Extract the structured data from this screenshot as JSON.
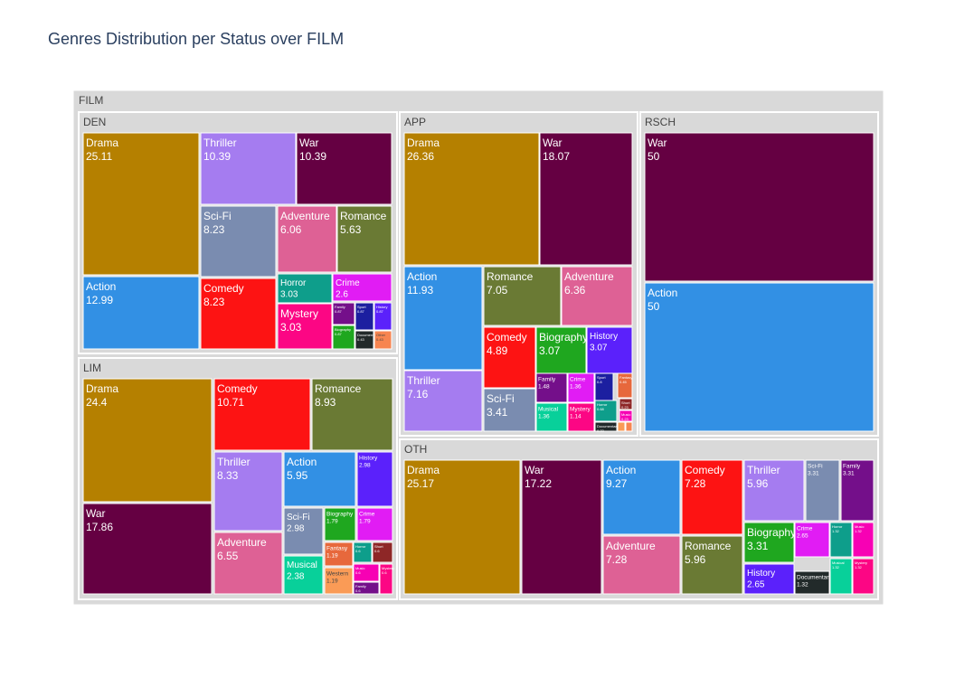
{
  "colors": {
    "Drama": "#b58000",
    "War": "#650042",
    "Thriller": "#a57cf0",
    "Sci-Fi": "#7a8cb0",
    "Adventure": "#de6195",
    "Romance": "#6a7a34",
    "Action": "#3290e4",
    "Comedy": "#fd1313",
    "Horror": "#0e9e8b",
    "Crime": "#e11cf4",
    "Mystery": "#fc0684",
    "Family": "#740f8a",
    "Sport": "#1c1fa0",
    "History": "#5b21fb",
    "Biography": "#1fa71f",
    "Musical": "#08d09a",
    "Fantasy": "#e7683c",
    "Western": "#fa9b56",
    "Short": "#8e2727",
    "Documentary": "#222a2a",
    "Music": "#f701b4",
    "Other": "#f78550",
    "parent": "#d9d9d9"
  },
  "chart_data": {
    "type": "treemap",
    "title": "Genres Distribution per Status over FILM",
    "root": "FILM",
    "groups": [
      {
        "name": "DEN",
        "children": [
          {
            "label": "Drama",
            "value": 25.11
          },
          {
            "label": "Thriller",
            "value": 10.39
          },
          {
            "label": "War",
            "value": 10.39
          },
          {
            "label": "Sci-Fi",
            "value": 8.23
          },
          {
            "label": "Adventure",
            "value": 6.06
          },
          {
            "label": "Romance",
            "value": 5.63
          },
          {
            "label": "Action",
            "value": 12.99
          },
          {
            "label": "Comedy",
            "value": 8.23
          },
          {
            "label": "Horror",
            "value": 3.03
          },
          {
            "label": "Crime",
            "value": 2.6
          },
          {
            "label": "Mystery",
            "value": 3.03
          },
          {
            "label": "Family",
            "value": 0.87
          },
          {
            "label": "Sport",
            "value": 0.87
          },
          {
            "label": "History",
            "value": 0.87
          },
          {
            "label": "Biography",
            "value": 0.87
          },
          {
            "label": "Documentary",
            "value": 0.43
          },
          {
            "label": "Other",
            "value": 0.43
          }
        ]
      },
      {
        "name": "APP",
        "children": [
          {
            "label": "Drama",
            "value": 26.36
          },
          {
            "label": "War",
            "value": 18.07
          },
          {
            "label": "Action",
            "value": 11.93
          },
          {
            "label": "Romance",
            "value": 7.05
          },
          {
            "label": "Adventure",
            "value": 6.36
          },
          {
            "label": "Thriller",
            "value": 7.16
          },
          {
            "label": "Comedy",
            "value": 4.89
          },
          {
            "label": "Biography",
            "value": 3.07
          },
          {
            "label": "History",
            "value": 3.07
          },
          {
            "label": "Sci-Fi",
            "value": 3.41
          },
          {
            "label": "Family",
            "value": 1.48
          },
          {
            "label": "Crime",
            "value": 1.36
          },
          {
            "label": "Sport",
            "value": 0.8
          },
          {
            "label": "Musical",
            "value": 1.36
          },
          {
            "label": "Mystery",
            "value": 1.14
          },
          {
            "label": "Horror",
            "value": 0.68
          },
          {
            "label": "Fantasy",
            "value": 0.45
          },
          {
            "label": "Short",
            "value": 0.23
          },
          {
            "label": "Music",
            "value": 0.23
          },
          {
            "label": "Documentary",
            "value": 0.23
          },
          {
            "label": "Western",
            "value": 0.11
          },
          {
            "label": "Other",
            "value": 0.11
          }
        ]
      },
      {
        "name": "RSCH",
        "children": [
          {
            "label": "War",
            "value": 50
          },
          {
            "label": "Action",
            "value": 50
          }
        ]
      },
      {
        "name": "LIM",
        "children": [
          {
            "label": "Drama",
            "value": 24.4
          },
          {
            "label": "War",
            "value": 17.86
          },
          {
            "label": "Comedy",
            "value": 10.71
          },
          {
            "label": "Romance",
            "value": 8.93
          },
          {
            "label": "Thriller",
            "value": 8.33
          },
          {
            "label": "Adventure",
            "value": 6.55
          },
          {
            "label": "Action",
            "value": 5.95
          },
          {
            "label": "History",
            "value": 2.98
          },
          {
            "label": "Sci-Fi",
            "value": 2.98
          },
          {
            "label": "Biography",
            "value": 1.79
          },
          {
            "label": "Crime",
            "value": 1.79
          },
          {
            "label": "Musical",
            "value": 2.38
          },
          {
            "label": "Fantasy",
            "value": 1.19
          },
          {
            "label": "Horror",
            "value": 0.6
          },
          {
            "label": "Short",
            "value": 0.6
          },
          {
            "label": "Western",
            "value": 1.19
          },
          {
            "label": "Music",
            "value": 0.6
          },
          {
            "label": "Family",
            "value": 0.6
          },
          {
            "label": "Mystery",
            "value": 0.6
          }
        ]
      },
      {
        "name": "OTH",
        "children": [
          {
            "label": "Drama",
            "value": 25.17
          },
          {
            "label": "War",
            "value": 17.22
          },
          {
            "label": "Action",
            "value": 9.27
          },
          {
            "label": "Comedy",
            "value": 7.28
          },
          {
            "label": "Adventure",
            "value": 7.28
          },
          {
            "label": "Romance",
            "value": 5.96
          },
          {
            "label": "Thriller",
            "value": 5.96
          },
          {
            "label": "Sci-Fi",
            "value": 3.31
          },
          {
            "label": "Family",
            "value": 3.31
          },
          {
            "label": "Biography",
            "value": 3.31
          },
          {
            "label": "Crime",
            "value": 2.65
          },
          {
            "label": "Horror",
            "value": 1.32
          },
          {
            "label": "Music",
            "value": 1.32
          },
          {
            "label": "History",
            "value": 2.65
          },
          {
            "label": "Documentary",
            "value": 1.32
          },
          {
            "label": "Musical",
            "value": 1.32
          },
          {
            "label": "Mystery",
            "value": 1.32
          }
        ]
      }
    ]
  }
}
